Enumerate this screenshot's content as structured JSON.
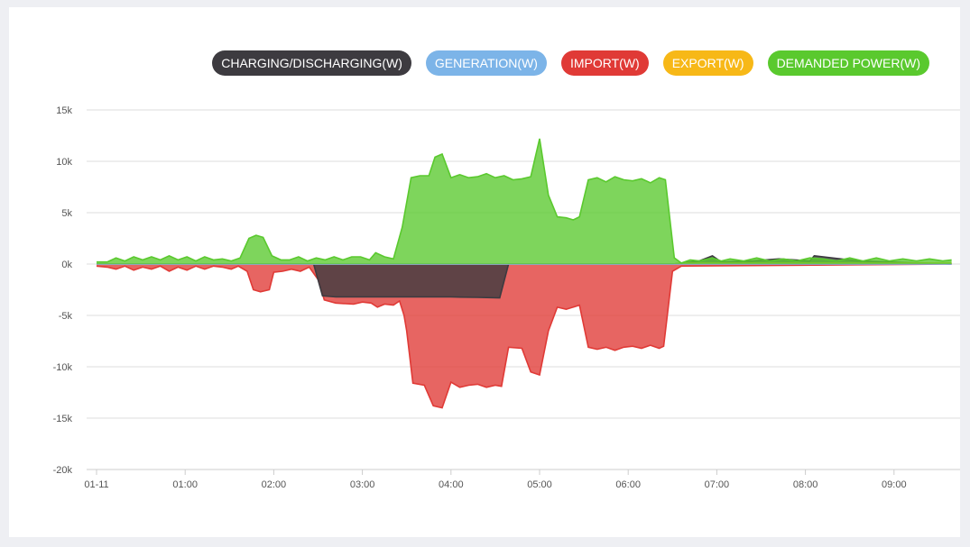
{
  "chart_data": {
    "type": "area",
    "legend_position": "top-right",
    "grid": true,
    "xlabel": "",
    "ylabel": "",
    "x_ticks": [
      "01-11",
      "01:00",
      "02:00",
      "03:00",
      "04:00",
      "05:00",
      "06:00",
      "07:00",
      "08:00",
      "09:00"
    ],
    "y_ticks": [
      "15k",
      "10k",
      "5k",
      "0k",
      "-5k",
      "-10k",
      "-15k",
      "-20k"
    ],
    "ylim": [
      -20000,
      15000
    ],
    "xlim_hours": [
      0,
      9.65
    ],
    "series": [
      {
        "name": "CHARGING/DISCHARGING(W)",
        "color": "#3d3b40",
        "points": [
          [
            0,
            0
          ],
          [
            2.45,
            0
          ],
          [
            2.55,
            -3100
          ],
          [
            2.7,
            -3200
          ],
          [
            3.0,
            -3200
          ],
          [
            3.5,
            -3200
          ],
          [
            4.0,
            -3200
          ],
          [
            4.3,
            -3250
          ],
          [
            4.55,
            -3300
          ],
          [
            4.65,
            0
          ],
          [
            6.5,
            0
          ],
          [
            6.8,
            300
          ],
          [
            6.95,
            800
          ],
          [
            7.05,
            200
          ],
          [
            7.4,
            300
          ],
          [
            7.7,
            500
          ],
          [
            8.05,
            300
          ],
          [
            8.1,
            800
          ],
          [
            8.3,
            600
          ],
          [
            8.6,
            300
          ],
          [
            9.65,
            0
          ]
        ]
      },
      {
        "name": "GENERATION(W)",
        "color": "#7cb4e8",
        "points": [
          [
            0,
            0
          ],
          [
            9.65,
            0
          ]
        ]
      },
      {
        "name": "IMPORT(W)",
        "color": "#e03a36",
        "points": [
          [
            0,
            -200
          ],
          [
            0.12,
            -300
          ],
          [
            0.22,
            -500
          ],
          [
            0.32,
            -200
          ],
          [
            0.42,
            -600
          ],
          [
            0.52,
            -300
          ],
          [
            0.62,
            -500
          ],
          [
            0.72,
            -200
          ],
          [
            0.82,
            -700
          ],
          [
            0.92,
            -300
          ],
          [
            1.02,
            -600
          ],
          [
            1.12,
            -200
          ],
          [
            1.22,
            -500
          ],
          [
            1.32,
            -200
          ],
          [
            1.42,
            -300
          ],
          [
            1.52,
            -500
          ],
          [
            1.6,
            -200
          ],
          [
            1.7,
            -700
          ],
          [
            1.77,
            -2500
          ],
          [
            1.85,
            -2700
          ],
          [
            1.95,
            -2500
          ],
          [
            2.0,
            -800
          ],
          [
            2.1,
            -700
          ],
          [
            2.2,
            -500
          ],
          [
            2.3,
            -700
          ],
          [
            2.4,
            -300
          ],
          [
            2.5,
            -1500
          ],
          [
            2.57,
            -3500
          ],
          [
            2.7,
            -3800
          ],
          [
            2.9,
            -3900
          ],
          [
            3.0,
            -3700
          ],
          [
            3.1,
            -3800
          ],
          [
            3.17,
            -4200
          ],
          [
            3.25,
            -3900
          ],
          [
            3.35,
            -4000
          ],
          [
            3.42,
            -3600
          ],
          [
            3.47,
            -5000
          ],
          [
            3.5,
            -6500
          ],
          [
            3.57,
            -11600
          ],
          [
            3.7,
            -11800
          ],
          [
            3.8,
            -13800
          ],
          [
            3.9,
            -14000
          ],
          [
            4.0,
            -11500
          ],
          [
            4.1,
            -12000
          ],
          [
            4.2,
            -11800
          ],
          [
            4.3,
            -11700
          ],
          [
            4.4,
            -12000
          ],
          [
            4.5,
            -11800
          ],
          [
            4.57,
            -11900
          ],
          [
            4.65,
            -8100
          ],
          [
            4.8,
            -8200
          ],
          [
            4.9,
            -10500
          ],
          [
            5.0,
            -10800
          ],
          [
            5.1,
            -6500
          ],
          [
            5.2,
            -4200
          ],
          [
            5.3,
            -4400
          ],
          [
            5.45,
            -4000
          ],
          [
            5.55,
            -8100
          ],
          [
            5.65,
            -8300
          ],
          [
            5.75,
            -8100
          ],
          [
            5.85,
            -8400
          ],
          [
            5.95,
            -8100
          ],
          [
            6.05,
            -8000
          ],
          [
            6.15,
            -8200
          ],
          [
            6.25,
            -7900
          ],
          [
            6.35,
            -8200
          ],
          [
            6.4,
            -8000
          ],
          [
            6.5,
            -700
          ],
          [
            6.6,
            -200
          ],
          [
            9.65,
            0
          ]
        ]
      },
      {
        "name": "EXPORT(W)",
        "color": "#f7b817",
        "points": [
          [
            0,
            0
          ],
          [
            6.5,
            0
          ],
          [
            6.6,
            100
          ],
          [
            9.65,
            100
          ]
        ]
      },
      {
        "name": "DEMANDED POWER(W)",
        "color": "#5ac92e",
        "points": [
          [
            0,
            200
          ],
          [
            0.12,
            200
          ],
          [
            0.22,
            600
          ],
          [
            0.32,
            300
          ],
          [
            0.42,
            700
          ],
          [
            0.52,
            400
          ],
          [
            0.62,
            700
          ],
          [
            0.72,
            400
          ],
          [
            0.82,
            800
          ],
          [
            0.92,
            400
          ],
          [
            1.02,
            700
          ],
          [
            1.12,
            300
          ],
          [
            1.22,
            700
          ],
          [
            1.32,
            400
          ],
          [
            1.42,
            500
          ],
          [
            1.52,
            300
          ],
          [
            1.62,
            600
          ],
          [
            1.72,
            2500
          ],
          [
            1.8,
            2800
          ],
          [
            1.88,
            2600
          ],
          [
            1.98,
            800
          ],
          [
            2.08,
            400
          ],
          [
            2.18,
            400
          ],
          [
            2.28,
            700
          ],
          [
            2.38,
            300
          ],
          [
            2.48,
            600
          ],
          [
            2.58,
            400
          ],
          [
            2.68,
            700
          ],
          [
            2.78,
            400
          ],
          [
            2.88,
            700
          ],
          [
            2.98,
            700
          ],
          [
            3.08,
            400
          ],
          [
            3.15,
            1100
          ],
          [
            3.25,
            700
          ],
          [
            3.35,
            500
          ],
          [
            3.45,
            3600
          ],
          [
            3.55,
            8400
          ],
          [
            3.65,
            8600
          ],
          [
            3.75,
            8600
          ],
          [
            3.82,
            10400
          ],
          [
            3.9,
            10700
          ],
          [
            4.0,
            8400
          ],
          [
            4.1,
            8700
          ],
          [
            4.2,
            8400
          ],
          [
            4.3,
            8500
          ],
          [
            4.4,
            8800
          ],
          [
            4.5,
            8400
          ],
          [
            4.6,
            8600
          ],
          [
            4.7,
            8200
          ],
          [
            4.8,
            8300
          ],
          [
            4.9,
            8500
          ],
          [
            5.0,
            12200
          ],
          [
            5.1,
            6700
          ],
          [
            5.2,
            4600
          ],
          [
            5.3,
            4500
          ],
          [
            5.38,
            4300
          ],
          [
            5.45,
            4600
          ],
          [
            5.55,
            8200
          ],
          [
            5.65,
            8400
          ],
          [
            5.75,
            8000
          ],
          [
            5.85,
            8500
          ],
          [
            5.95,
            8200
          ],
          [
            6.05,
            8100
          ],
          [
            6.15,
            8300
          ],
          [
            6.25,
            7900
          ],
          [
            6.35,
            8400
          ],
          [
            6.42,
            8200
          ],
          [
            6.52,
            600
          ],
          [
            6.6,
            100
          ],
          [
            6.7,
            400
          ],
          [
            6.8,
            300
          ],
          [
            6.95,
            600
          ],
          [
            7.05,
            300
          ],
          [
            7.15,
            500
          ],
          [
            7.3,
            300
          ],
          [
            7.45,
            600
          ],
          [
            7.6,
            300
          ],
          [
            7.75,
            500
          ],
          [
            7.9,
            300
          ],
          [
            8.05,
            600
          ],
          [
            8.2,
            500
          ],
          [
            8.35,
            300
          ],
          [
            8.5,
            600
          ],
          [
            8.65,
            300
          ],
          [
            8.8,
            600
          ],
          [
            8.95,
            300
          ],
          [
            9.1,
            500
          ],
          [
            9.25,
            300
          ],
          [
            9.4,
            500
          ],
          [
            9.55,
            300
          ],
          [
            9.65,
            400
          ]
        ]
      }
    ]
  },
  "legend": {
    "items": [
      {
        "label": "CHARGING/DISCHARGING(W)",
        "color": "#3d3b40"
      },
      {
        "label": "GENERATION(W)",
        "color": "#7cb4e8"
      },
      {
        "label": "IMPORT(W)",
        "color": "#e03a36"
      },
      {
        "label": "EXPORT(W)",
        "color": "#f7b817"
      },
      {
        "label": "DEMANDED POWER(W)",
        "color": "#5ac92e"
      }
    ]
  }
}
